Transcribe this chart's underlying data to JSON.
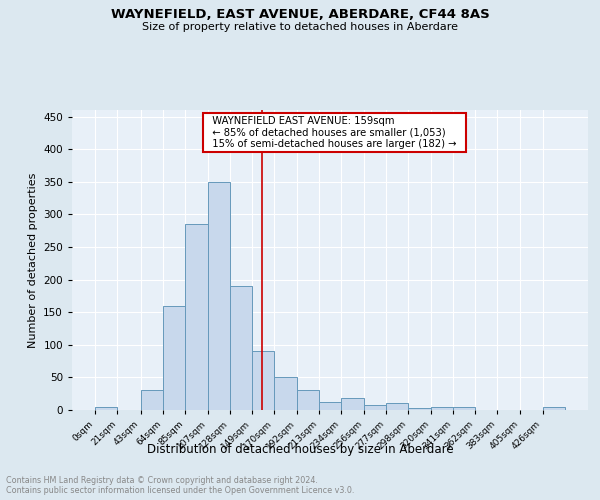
{
  "title1": "WAYNEFIELD, EAST AVENUE, ABERDARE, CF44 8AS",
  "title2": "Size of property relative to detached houses in Aberdare",
  "xlabel": "Distribution of detached houses by size in Aberdare",
  "ylabel": "Number of detached properties",
  "bin_labels": [
    "0sqm",
    "21sqm",
    "43sqm",
    "64sqm",
    "85sqm",
    "107sqm",
    "128sqm",
    "149sqm",
    "170sqm",
    "192sqm",
    "213sqm",
    "234sqm",
    "256sqm",
    "277sqm",
    "298sqm",
    "320sqm",
    "341sqm",
    "362sqm",
    "383sqm",
    "405sqm",
    "426sqm"
  ],
  "bar_heights": [
    4,
    0,
    30,
    160,
    285,
    350,
    190,
    90,
    50,
    30,
    13,
    19,
    7,
    10,
    3,
    5,
    5,
    0,
    0,
    0,
    4
  ],
  "bar_color": "#c8d8ec",
  "bar_edge_color": "#6699bb",
  "vline_x": 159,
  "vline_color": "#cc0000",
  "annotation_text": "  WAYNEFIELD EAST AVENUE: 159sqm  \n  ← 85% of detached houses are smaller (1,053)  \n  15% of semi-detached houses are larger (182) →  ",
  "annotation_box_color": "#ffffff",
  "annotation_box_edge": "#cc0000",
  "background_color": "#dce8f0",
  "plot_bg_color": "#e8f0f8",
  "footnote": "Contains HM Land Registry data © Crown copyright and database right 2024.\nContains public sector information licensed under the Open Government Licence v3.0.",
  "ylim": [
    0,
    460
  ],
  "bin_edges": [
    0,
    21,
    43,
    64,
    85,
    107,
    128,
    149,
    170,
    192,
    213,
    234,
    256,
    277,
    298,
    320,
    341,
    362,
    383,
    405,
    426,
    447
  ]
}
